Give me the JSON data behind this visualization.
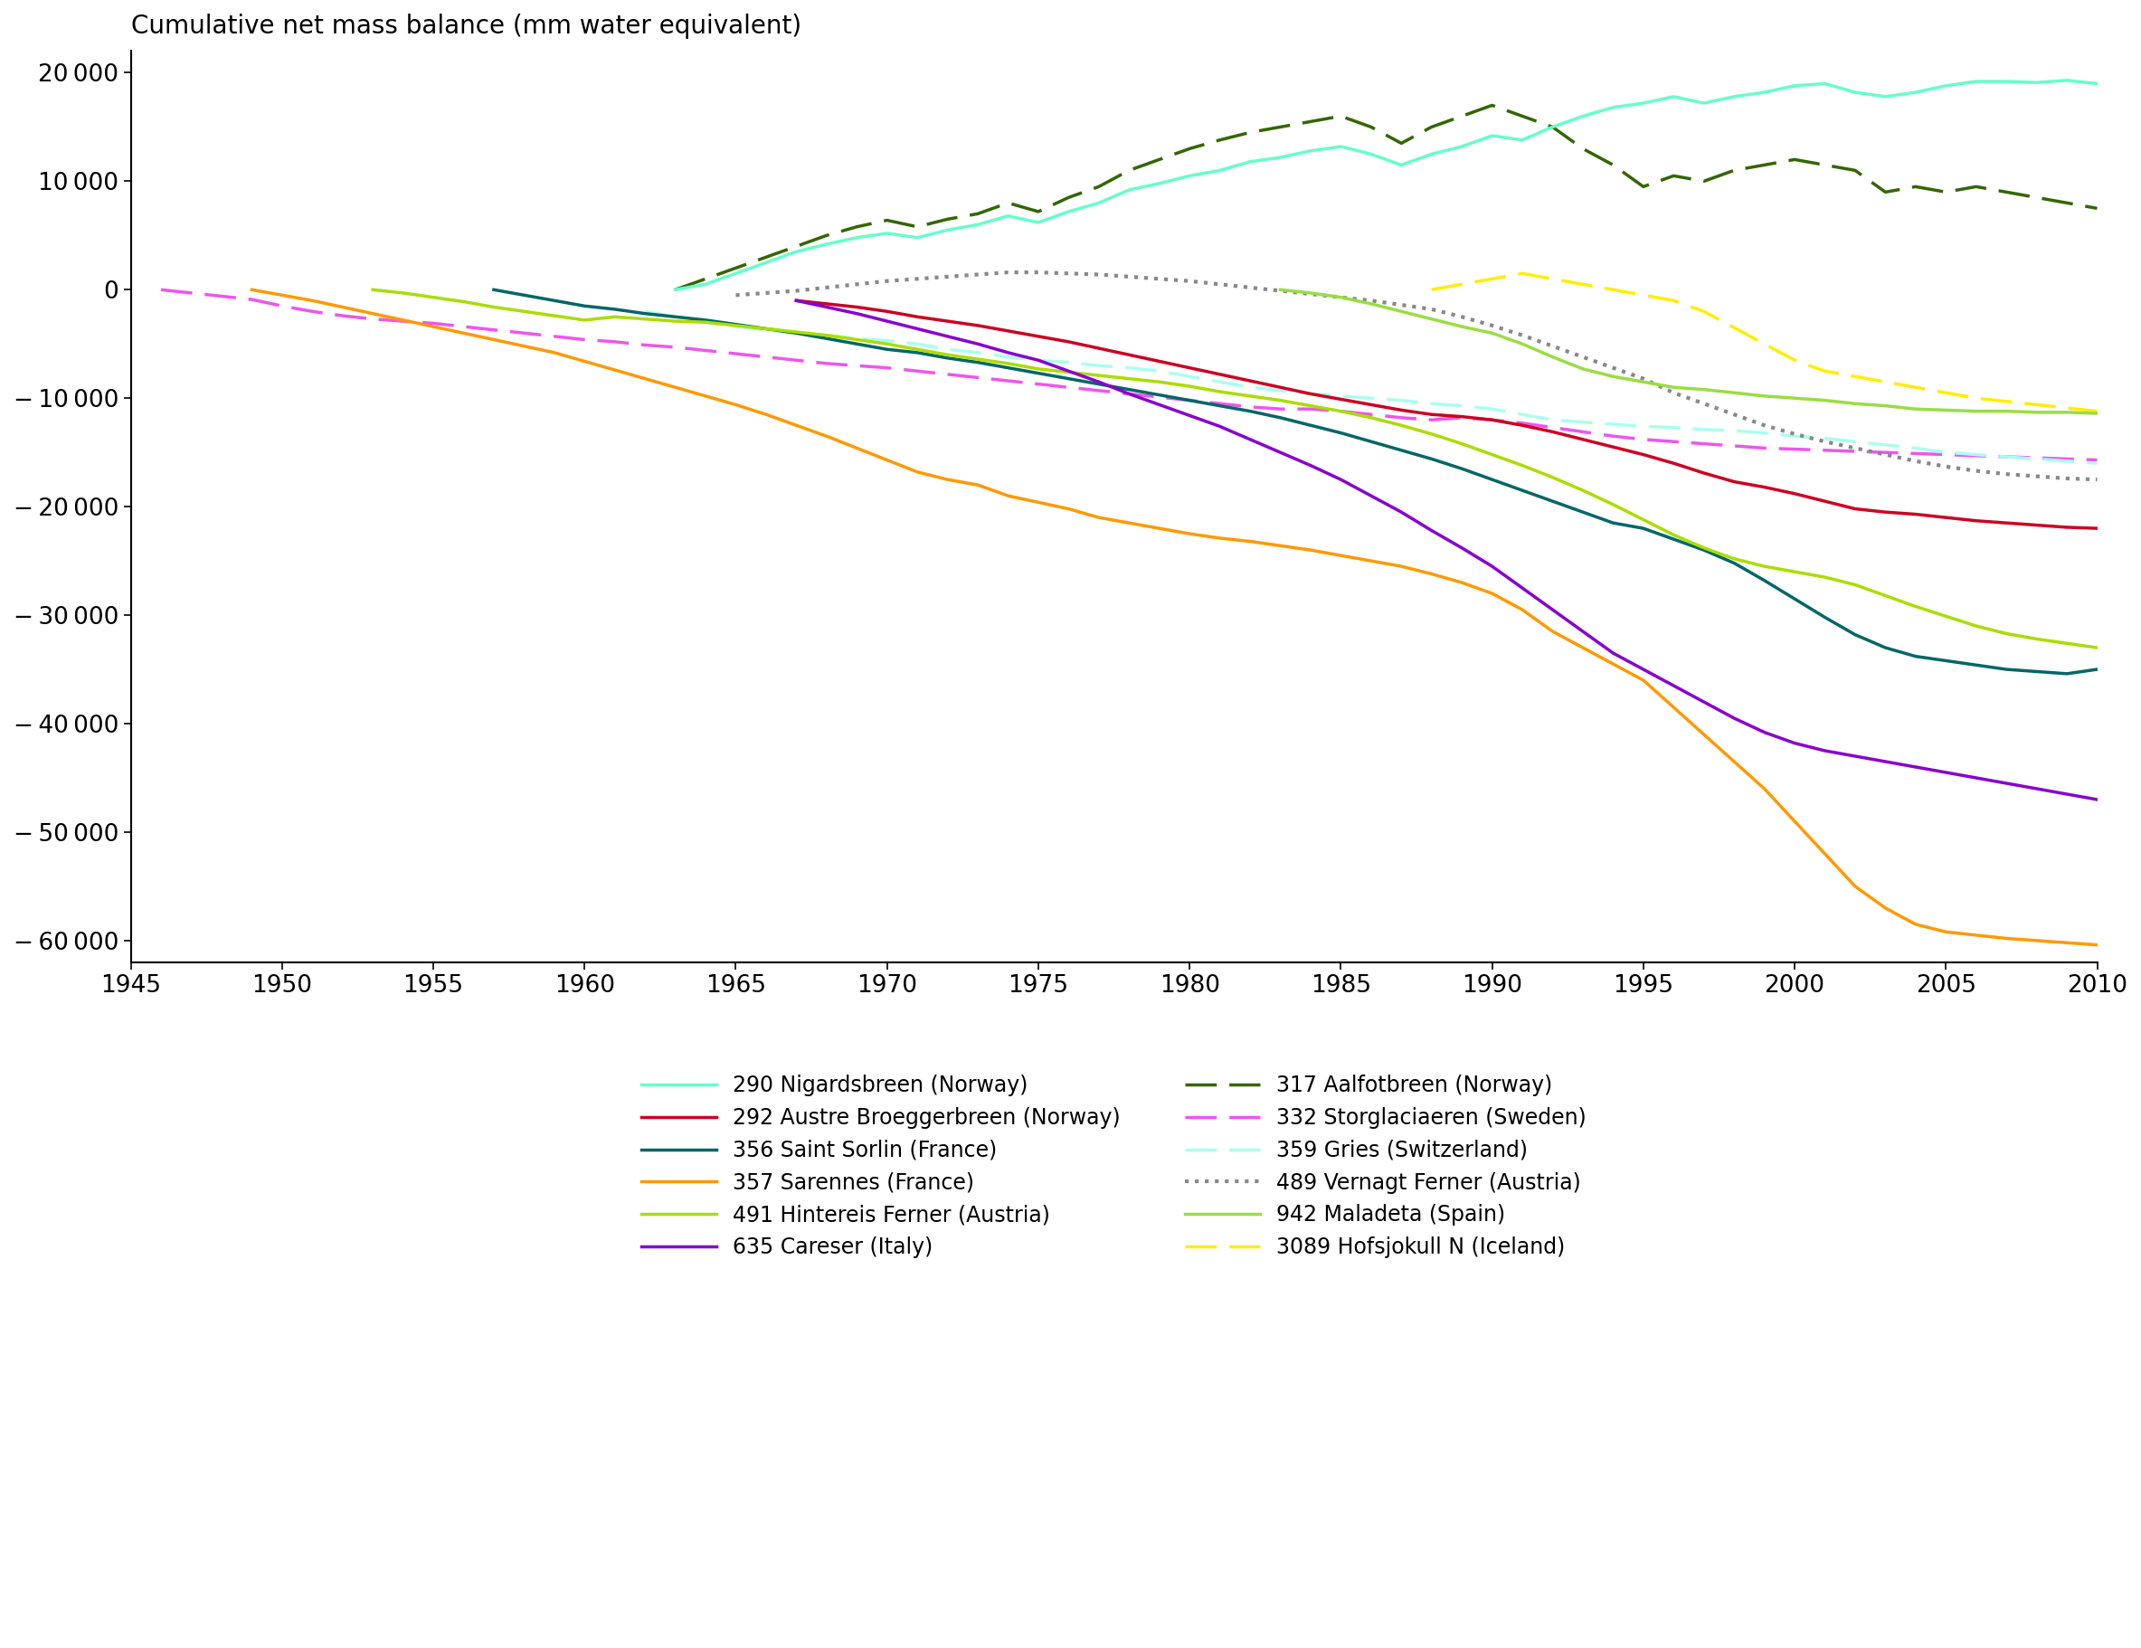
{
  "title": "Cumulative net mass balance (mm water equivalent)",
  "xlim": [
    1945,
    2010
  ],
  "ylim": [
    -62000,
    22000
  ],
  "yticks": [
    20000,
    10000,
    0,
    -10000,
    -20000,
    -30000,
    -40000,
    -50000,
    -60000
  ],
  "xticks": [
    1945,
    1950,
    1955,
    1960,
    1965,
    1970,
    1975,
    1980,
    1985,
    1990,
    1995,
    2000,
    2005,
    2010
  ],
  "series": {
    "290_Nigardsbreen": {
      "label": "290 Nigardsbreen (Norway)",
      "color": "#66ffcc",
      "linestyle": "solid",
      "linewidth": 2.5,
      "zorder": 5
    },
    "292_Austre": {
      "label": "292 Austre Broeggerbreen (Norway)",
      "color": "#cc0022",
      "linestyle": "solid",
      "linewidth": 2.5,
      "zorder": 5
    },
    "356_Saint_Sorlin": {
      "label": "356 Saint Sorlin (France)",
      "color": "#006666",
      "linestyle": "solid",
      "linewidth": 2.5,
      "zorder": 5
    },
    "357_Sarennes": {
      "label": "357 Sarennes (France)",
      "color": "#ff9900",
      "linestyle": "solid",
      "linewidth": 2.5,
      "zorder": 5
    },
    "491_Hintereis": {
      "label": "491 Hintereis Ferner (Austria)",
      "color": "#aadd00",
      "linestyle": "solid",
      "linewidth": 2.5,
      "zorder": 5
    },
    "635_Careser": {
      "label": "635 Careser (Italy)",
      "color": "#8800cc",
      "linestyle": "solid",
      "linewidth": 2.5,
      "zorder": 5
    },
    "317_Aalfotbreen": {
      "label": "317 Aalfotbreen (Norway)",
      "color": "#336600",
      "linestyle": "dashed",
      "linewidth": 2.5,
      "zorder": 4
    },
    "332_Storglaciaeren": {
      "label": "332 Storglaciaeren (Sweden)",
      "color": "#ee55ee",
      "linestyle": "dashed",
      "linewidth": 2.5,
      "zorder": 4
    },
    "359_Gries": {
      "label": "359 Gries (Switzerland)",
      "color": "#aaffee",
      "linestyle": "dashed",
      "linewidth": 2.5,
      "zorder": 4
    },
    "489_Vernagt": {
      "label": "489 Vernagt Ferner (Austria)",
      "color": "#888888",
      "linestyle": "dotted",
      "linewidth": 3.0,
      "zorder": 4
    },
    "942_Maladeta": {
      "label": "942 Maladeta (Spain)",
      "color": "#99dd44",
      "linestyle": "solid",
      "linewidth": 2.5,
      "zorder": 5
    },
    "3089_Hofsjokull": {
      "label": "3089 Hofsjokull N (Iceland)",
      "color": "#ffee00",
      "linestyle": "dashed",
      "linewidth": 2.5,
      "zorder": 4
    }
  },
  "legend_col1": [
    "290_Nigardsbreen",
    "356_Saint_Sorlin",
    "491_Hintereis",
    "317_Aalfotbreen",
    "359_Gries",
    "942_Maladeta"
  ],
  "legend_col2": [
    "292_Austre",
    "357_Sarennes",
    "635_Careser",
    "332_Storglaciaeren",
    "489_Vernagt",
    "3089_Hofsjokull"
  ]
}
